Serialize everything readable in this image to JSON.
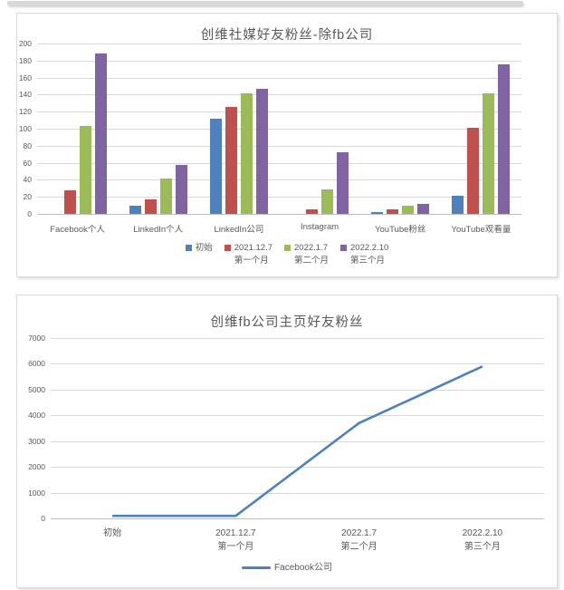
{
  "window": {
    "top_edge_color": "#d8d8d8",
    "background": "#ffffff",
    "panel_border": "#d9d9d9"
  },
  "colors": {
    "series_blue": "#4F81BD",
    "series_red": "#C0504D",
    "series_green": "#9BBB59",
    "series_purple": "#8064A2",
    "gridline": "#d9d9d9",
    "axis_line": "#bfbfbf",
    "text_gray": "#595959"
  },
  "chart_data": [
    {
      "type": "bar",
      "title": "创维社媒好友粉丝-除fb公司",
      "categories": [
        "Facebook个人",
        "LinkedIn个人",
        "LinkedIn公司",
        "Instagram",
        "YouTube粉丝",
        "YouTube观看量"
      ],
      "series": [
        {
          "name": "初始",
          "color": "#4F81BD",
          "values": [
            0,
            10,
            112,
            0,
            2,
            21
          ]
        },
        {
          "name": "2021.12.7\n第一个月",
          "color": "#C0504D",
          "values": [
            28,
            17,
            126,
            5,
            5,
            101
          ]
        },
        {
          "name": "2022.1.7\n第二个月",
          "color": "#9BBB59",
          "values": [
            103,
            42,
            141,
            29,
            10,
            142
          ]
        },
        {
          "name": "2022.2.10\n第三个月",
          "color": "#8064A2",
          "values": [
            188,
            57,
            147,
            72,
            12,
            176
          ]
        }
      ],
      "ylim": [
        0,
        200
      ],
      "ytick_step": 20,
      "grid": true,
      "legend_position": "bottom",
      "xlabel": "",
      "ylabel": ""
    },
    {
      "type": "line",
      "title": "创维fb公司主页好友粉丝",
      "categories": [
        "初始",
        "2021.12.7\n第一个月",
        "2022.1.7\n第二个月",
        "2022.2.10\n第三个月"
      ],
      "series": [
        {
          "name": "Facebook公司",
          "color": "#4F81BD",
          "values": [
            100,
            100,
            3700,
            5900
          ]
        }
      ],
      "ylim": [
        0,
        7000
      ],
      "ytick_step": 1000,
      "grid": true,
      "legend_position": "bottom",
      "xlabel": "",
      "ylabel": ""
    }
  ]
}
